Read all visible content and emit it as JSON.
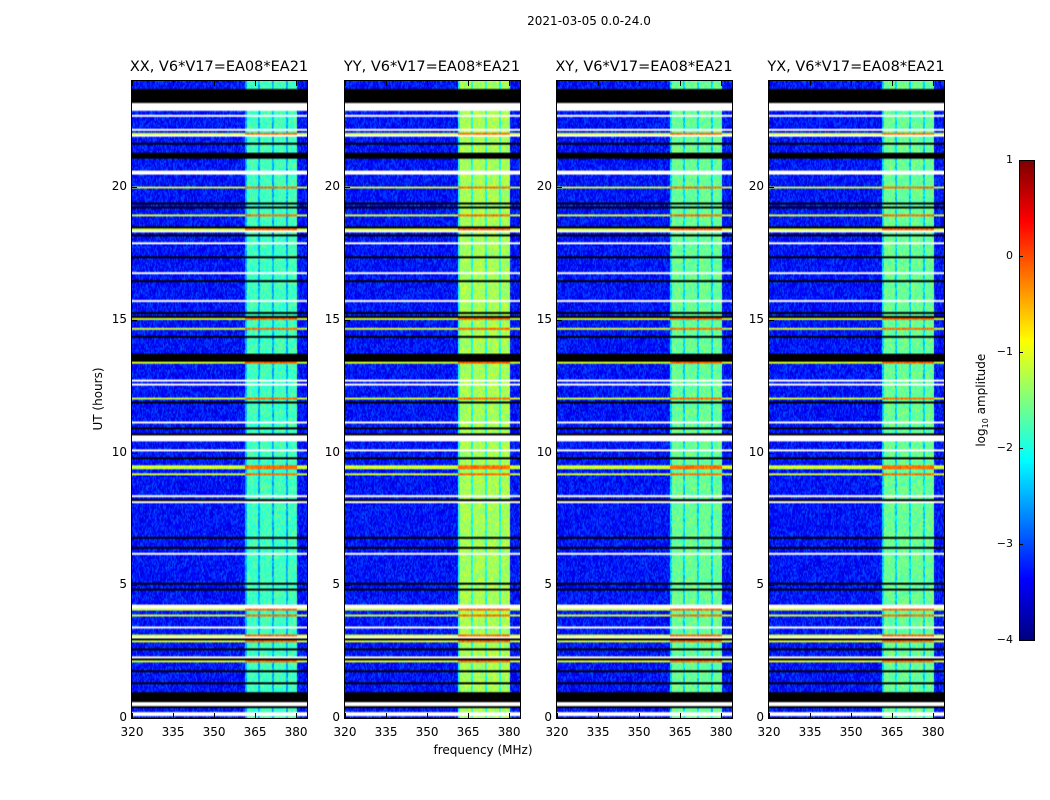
{
  "chart_data": {
    "type": "heatmap",
    "title": "2021-03-05 0.0-24.0",
    "xlabel": "frequency (MHz)",
    "ylabel": "UT (hours)",
    "xlim": [
      320,
      384
    ],
    "ylim": [
      0,
      24
    ],
    "xticks": [
      320,
      335,
      350,
      365,
      380
    ],
    "yticks": [
      0,
      5,
      10,
      15,
      20
    ],
    "panels": [
      {
        "title": "XX, V6*V17=EA08*EA21",
        "band_level": -1.8
      },
      {
        "title": "YY, V6*V17=EA08*EA21",
        "band_level": -1.3
      },
      {
        "title": "XY, V6*V17=EA08*EA21",
        "band_level": -1.6
      },
      {
        "title": "YX, V6*V17=EA08*EA21",
        "band_level": -1.6
      }
    ],
    "background_level": -3.3,
    "bright_band_mhz": [
      361,
      380
    ],
    "flagged_black_ut": [
      [
        23.2,
        23.7
      ],
      [
        0.6,
        0.97
      ],
      [
        21.1,
        21.3
      ],
      [
        13.5,
        13.7
      ]
    ],
    "flagged_white_ut": [
      [
        22.9,
        23.15
      ],
      [
        0.42,
        0.6
      ],
      [
        0.1,
        0.25
      ]
    ],
    "colorbar": {
      "label": "log10 amplitude",
      "range": [
        -4,
        1
      ],
      "ticks": [
        1,
        0,
        -1,
        -2,
        -3,
        -4
      ],
      "tick_labels": [
        "1",
        "0",
        "−1",
        "−2",
        "−3",
        "−4"
      ],
      "colormap": "jet"
    }
  }
}
